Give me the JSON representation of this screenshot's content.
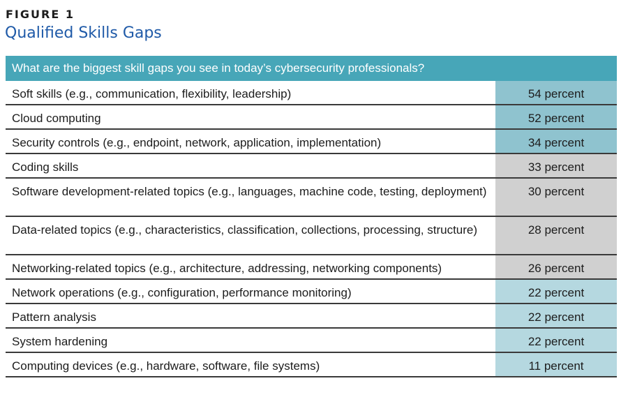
{
  "figure": {
    "label": "FIGURE 1",
    "title": "Qualified Skills Gaps"
  },
  "chart_data": {
    "type": "table",
    "title": "Qualified Skills Gaps",
    "question": "What are the biggest skill gaps you see in today’s cybersecurity professionals?",
    "unit": "percent",
    "colors": {
      "header": "#47a6b8",
      "high": "#8fc3cf",
      "mid": "#d0d0d0",
      "low": "#b5d8e0"
    },
    "rows": [
      {
        "label": "Soft skills (e.g., communication, flexibility, leadership)",
        "value": 54,
        "value_text": "54 percent",
        "tier": "high"
      },
      {
        "label": "Cloud computing",
        "value": 52,
        "value_text": "52 percent",
        "tier": "high"
      },
      {
        "label": "Security controls (e.g., endpoint, network, application, implementation)",
        "value": 34,
        "value_text": "34 percent",
        "tier": "high"
      },
      {
        "label": "Coding skills",
        "value": 33,
        "value_text": "33 percent",
        "tier": "mid"
      },
      {
        "label": "Software development-related topics (e.g., languages, machine code, testing, deployment)",
        "value": 30,
        "value_text": "30 percent",
        "tier": "mid"
      },
      {
        "label": "Data-related topics (e.g., characteristics, classification, collections, processing, structure)",
        "value": 28,
        "value_text": "28 percent",
        "tier": "mid"
      },
      {
        "label": "Networking-related topics (e.g., architecture, addressing, networking components)",
        "value": 26,
        "value_text": "26 percent",
        "tier": "mid"
      },
      {
        "label": "Network operations (e.g., configuration, performance monitoring)",
        "value": 22,
        "value_text": "22 percent",
        "tier": "low"
      },
      {
        "label": "Pattern analysis",
        "value": 22,
        "value_text": "22 percent",
        "tier": "low"
      },
      {
        "label": "System hardening",
        "value": 22,
        "value_text": "22 percent",
        "tier": "low"
      },
      {
        "label": "Computing devices (e.g., hardware, software, file systems)",
        "value": 11,
        "value_text": "11 percent",
        "tier": "low"
      }
    ]
  }
}
